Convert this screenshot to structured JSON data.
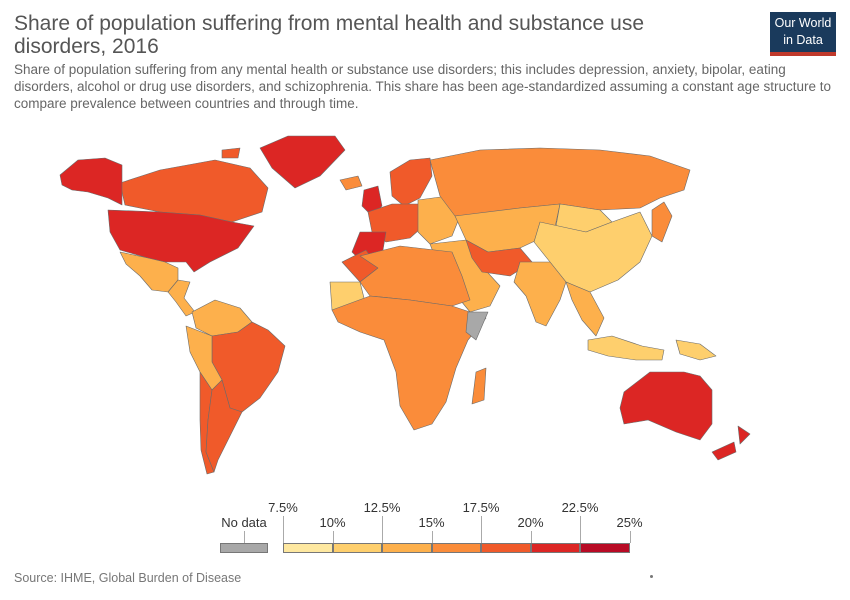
{
  "header": {
    "title": "Share of population suffering from mental health and substance use disorders, 2016",
    "subtitle": "Share of population suffering from any mental health or substance use disorders; this includes depression, anxiety, bipolar, eating disorders, alcohol or drug use disorders, and schizophrenia. This share has been age-standardized assuming a constant age structure to compare prevalence between countries and through time."
  },
  "logo": {
    "line1": "Our World",
    "line2": "in Data"
  },
  "legend": {
    "no_data_label": "No data",
    "no_data_color": "#a8a8a8",
    "bins": [
      {
        "from": "7.5%",
        "to": "10%",
        "color": "#fee8a0"
      },
      {
        "from": "10%",
        "to": "12.5%",
        "color": "#fecf6d"
      },
      {
        "from": "12.5%",
        "to": "15%",
        "color": "#fdb04c"
      },
      {
        "from": "15%",
        "to": "17.5%",
        "color": "#fa8c3a"
      },
      {
        "from": "17.5%",
        "to": "20%",
        "color": "#f05a2a"
      },
      {
        "from": "20%",
        "to": "22.5%",
        "color": "#dc2624"
      },
      {
        "from": "22.5%",
        "to": "25%",
        "color": "#b80b25"
      }
    ],
    "tick_labels": [
      "7.5%",
      "10%",
      "12.5%",
      "15%",
      "17.5%",
      "20%",
      "22.5%",
      "25%"
    ]
  },
  "source": "Source: IHME, Global Burden of Disease",
  "map": {
    "land_border_color": "#6b6b6b",
    "regions": [
      {
        "name": "Canada",
        "color": "#f05a2a"
      },
      {
        "name": "Alaska",
        "color": "#dc2624"
      },
      {
        "name": "Greenland",
        "color": "#dc2624"
      },
      {
        "name": "United States",
        "color": "#dc2624"
      },
      {
        "name": "Mexico",
        "color": "#fdb04c"
      },
      {
        "name": "Central America",
        "color": "#fdb04c"
      },
      {
        "name": "Northern South America",
        "color": "#fdb04c"
      },
      {
        "name": "Brazil",
        "color": "#f05a2a"
      },
      {
        "name": "Peru and Bolivia",
        "color": "#fdb04c"
      },
      {
        "name": "Chile",
        "color": "#f05a2a"
      },
      {
        "name": "Argentina",
        "color": "#f05a2a"
      },
      {
        "name": "Iceland",
        "color": "#fa8c3a"
      },
      {
        "name": "Scandinavia",
        "color": "#f05a2a"
      },
      {
        "name": "United Kingdom",
        "color": "#dc2624"
      },
      {
        "name": "Western Europe",
        "color": "#f05a2a"
      },
      {
        "name": "Iberia",
        "color": "#dc2624"
      },
      {
        "name": "Eastern Europe",
        "color": "#fdb04c"
      },
      {
        "name": "Russia",
        "color": "#fa8c3a"
      },
      {
        "name": "Central Asia",
        "color": "#fdb04c"
      },
      {
        "name": "Mongolia",
        "color": "#fecf6d"
      },
      {
        "name": "China",
        "color": "#fecf6d"
      },
      {
        "name": "Middle East",
        "color": "#fdb04c"
      },
      {
        "name": "Iran and Afghanistan",
        "color": "#f05a2a"
      },
      {
        "name": "India",
        "color": "#fdb04c"
      },
      {
        "name": "Southeast Asia",
        "color": "#fdb04c"
      },
      {
        "name": "Japan",
        "color": "#fa8c3a"
      },
      {
        "name": "Indonesia",
        "color": "#fecf6d"
      },
      {
        "name": "Papua New Guinea",
        "color": "#fecf6d"
      },
      {
        "name": "Morocco",
        "color": "#f05a2a"
      },
      {
        "name": "Western Sahara",
        "color": "#fecf6d"
      },
      {
        "name": "North Africa",
        "color": "#fa8c3a"
      },
      {
        "name": "Sub-Saharan Africa",
        "color": "#fa8c3a"
      },
      {
        "name": "Somalia",
        "color": "#a8a8a8"
      },
      {
        "name": "Madagascar",
        "color": "#fa8c3a"
      },
      {
        "name": "Australia",
        "color": "#dc2624"
      },
      {
        "name": "New Zealand",
        "color": "#dc2624"
      }
    ]
  }
}
